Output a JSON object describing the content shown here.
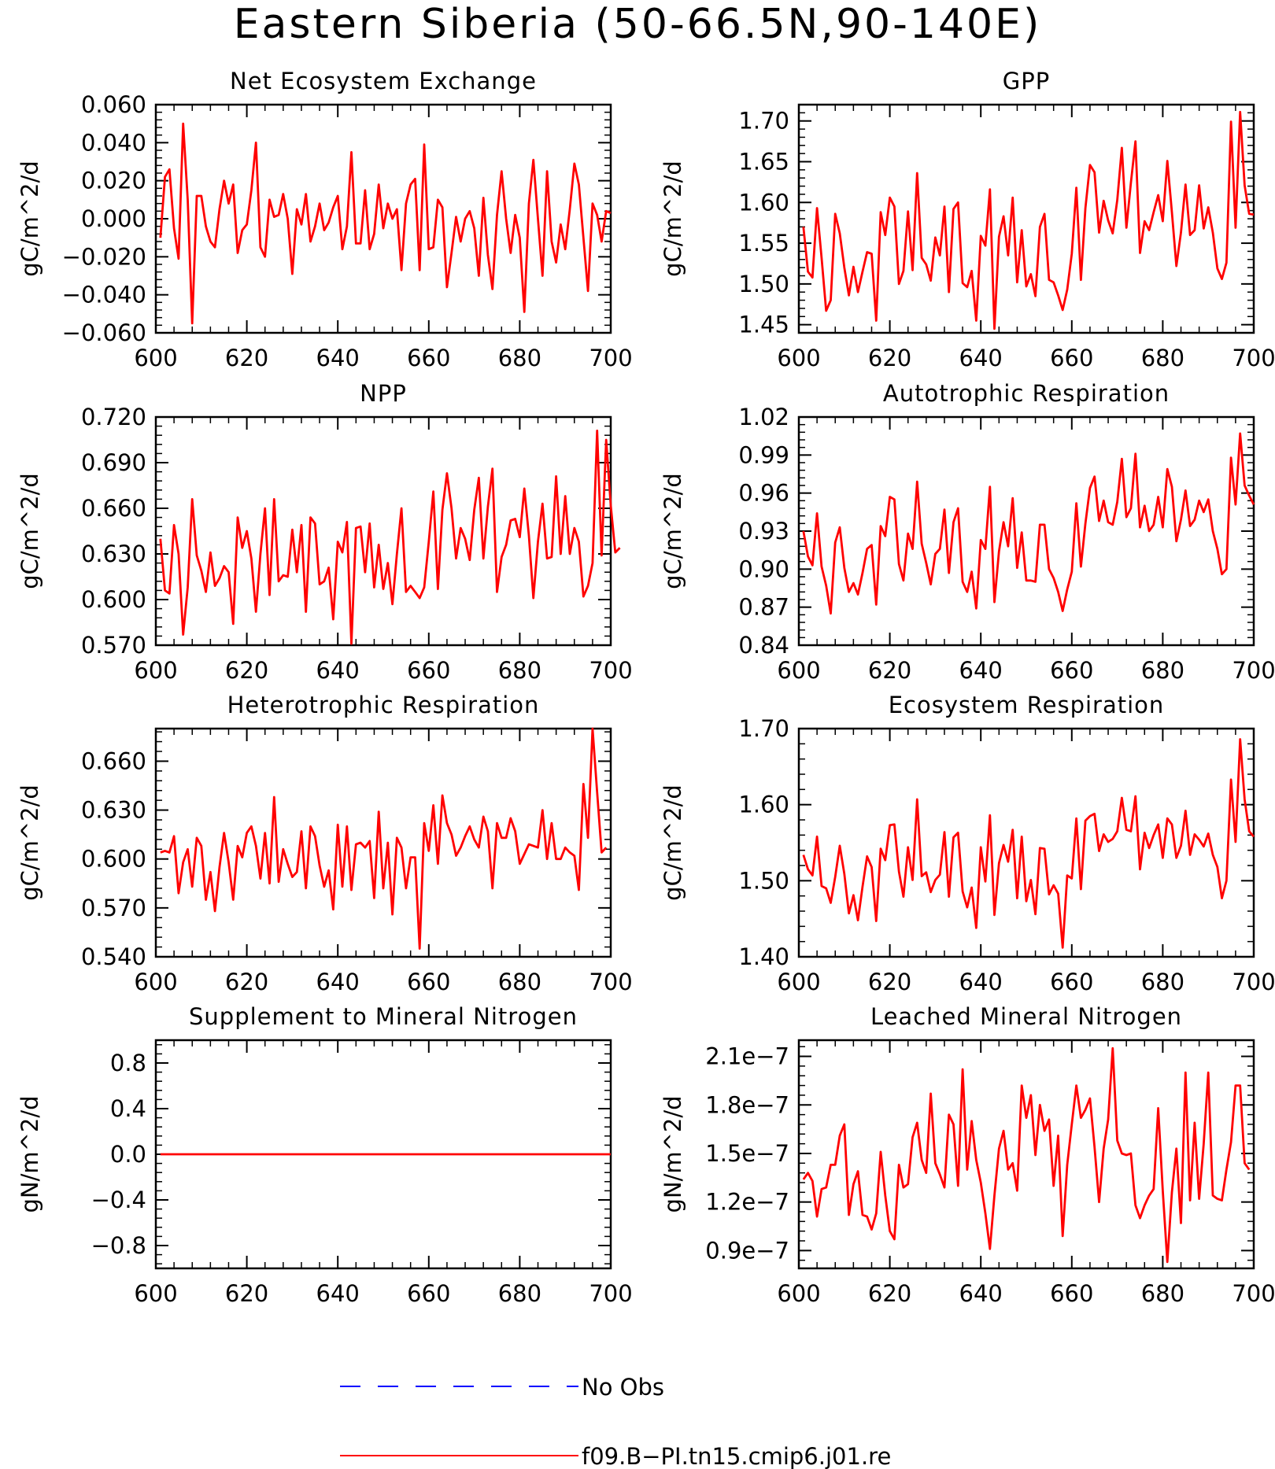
{
  "page_title": "Eastern Siberia (50-66.5N,90-140E)",
  "legend": {
    "entries": [
      {
        "label": "No Obs",
        "color": "#0000ff",
        "style": "dashed"
      },
      {
        "label": "f09.B-PI.tn15.cmip6.j01.re",
        "color": "#ff0000",
        "style": "solid"
      }
    ]
  },
  "chart_data": [
    {
      "type": "line",
      "title": "Net Ecosystem Exchange",
      "ylabel": "gC/m^2/d",
      "xlim": [
        600,
        700
      ],
      "ylim": [
        -0.06,
        0.06
      ],
      "x_ticks": [
        600,
        620,
        640,
        660,
        680,
        700
      ],
      "y_ticks": [
        -0.06,
        -0.04,
        -0.02,
        0,
        0.02,
        0.04,
        0.06
      ],
      "y_tick_labels": [
        "-0.060",
        "-0.040",
        "-0.020",
        "0.000",
        "0.020",
        "0.040",
        "0.060"
      ],
      "series": [
        {
          "color": "#ff0000",
          "x_start": 601,
          "x_step": 1,
          "values": [
            -0.01,
            0.022,
            0.026,
            -0.005,
            -0.021,
            0.05,
            0.01,
            -0.055,
            0.012,
            0.012,
            -0.004,
            -0.012,
            -0.015,
            0.005,
            0.02,
            0.008,
            0.018,
            -0.018,
            -0.006,
            -0.003,
            0.015,
            0.04,
            -0.015,
            -0.02,
            0.01,
            0.001,
            0.002,
            0.013,
            0.0,
            -0.029,
            0.005,
            -0.003,
            0.013,
            -0.012,
            -0.004,
            0.008,
            -0.006,
            -0.002,
            0.006,
            0.012,
            -0.016,
            -0.004,
            0.035,
            -0.013,
            -0.013,
            0.015,
            -0.016,
            -0.008,
            0.018,
            -0.005,
            0.008,
            0.0,
            0.005,
            -0.027,
            0.008,
            0.018,
            0.021,
            -0.027,
            0.039,
            -0.016,
            -0.015,
            0.01,
            0.006,
            -0.036,
            -0.018,
            0.001,
            -0.012,
            0.0,
            0.004,
            -0.005,
            -0.03,
            0.011,
            -0.019,
            -0.037,
            0.002,
            0.025,
            0.0,
            -0.018,
            0.002,
            -0.01,
            -0.049,
            0.008,
            0.031,
            0.0,
            -0.03,
            0.025,
            -0.012,
            -0.023,
            -0.003,
            -0.016,
            0.005,
            0.029,
            0.018,
            -0.01,
            -0.038,
            0.008,
            0.002,
            -0.012,
            0.004,
            0.003
          ]
        }
      ]
    },
    {
      "type": "line",
      "title": "GPP",
      "ylabel": "gC/m^2/d",
      "xlim": [
        600,
        700
      ],
      "ylim": [
        1.44,
        1.72
      ],
      "x_ticks": [
        600,
        620,
        640,
        660,
        680,
        700
      ],
      "y_ticks": [
        1.45,
        1.5,
        1.55,
        1.6,
        1.65,
        1.7
      ],
      "y_tick_labels": [
        "1.45",
        "1.50",
        "1.55",
        "1.60",
        "1.65",
        "1.70"
      ],
      "series": [
        {
          "color": "#ff0000",
          "x_start": 601,
          "x_step": 1,
          "values": [
            1.57,
            1.515,
            1.508,
            1.593,
            1.532,
            1.467,
            1.48,
            1.586,
            1.562,
            1.52,
            1.486,
            1.521,
            1.49,
            1.515,
            1.539,
            1.537,
            1.455,
            1.588,
            1.56,
            1.606,
            1.595,
            1.5,
            1.516,
            1.589,
            1.517,
            1.636,
            1.532,
            1.524,
            1.504,
            1.557,
            1.535,
            1.595,
            1.49,
            1.592,
            1.6,
            1.501,
            1.496,
            1.516,
            1.455,
            1.559,
            1.547,
            1.616,
            1.445,
            1.558,
            1.583,
            1.535,
            1.606,
            1.502,
            1.566,
            1.497,
            1.512,
            1.485,
            1.57,
            1.586,
            1.505,
            1.502,
            1.486,
            1.468,
            1.493,
            1.537,
            1.618,
            1.505,
            1.593,
            1.646,
            1.637,
            1.563,
            1.602,
            1.578,
            1.562,
            1.603,
            1.667,
            1.569,
            1.624,
            1.675,
            1.538,
            1.577,
            1.566,
            1.588,
            1.609,
            1.577,
            1.651,
            1.588,
            1.522,
            1.563,
            1.622,
            1.56,
            1.566,
            1.621,
            1.568,
            1.594,
            1.563,
            1.519,
            1.506,
            1.526,
            1.699,
            1.569,
            1.711,
            1.621,
            1.586,
            1.585
          ]
        }
      ]
    },
    {
      "type": "line",
      "title": "NPP",
      "ylabel": "gC/m^2/d",
      "xlim": [
        600,
        700
      ],
      "ylim": [
        0.57,
        0.72
      ],
      "x_ticks": [
        600,
        620,
        640,
        660,
        680,
        700
      ],
      "y_ticks": [
        0.57,
        0.6,
        0.63,
        0.66,
        0.69,
        0.72
      ],
      "y_tick_labels": [
        "0.570",
        "0.600",
        "0.630",
        "0.660",
        "0.690",
        "0.720"
      ],
      "series": [
        {
          "color": "#ff0000",
          "x_start": 601,
          "x_step": 1,
          "values": [
            0.64,
            0.606,
            0.604,
            0.649,
            0.63,
            0.577,
            0.608,
            0.666,
            0.629,
            0.619,
            0.605,
            0.631,
            0.609,
            0.614,
            0.622,
            0.618,
            0.584,
            0.654,
            0.634,
            0.645,
            0.627,
            0.592,
            0.63,
            0.66,
            0.603,
            0.666,
            0.612,
            0.616,
            0.615,
            0.646,
            0.618,
            0.649,
            0.592,
            0.654,
            0.65,
            0.61,
            0.612,
            0.621,
            0.587,
            0.638,
            0.631,
            0.651,
            0.571,
            0.647,
            0.648,
            0.618,
            0.65,
            0.608,
            0.636,
            0.607,
            0.624,
            0.597,
            0.63,
            0.66,
            0.605,
            0.609,
            0.605,
            0.601,
            0.608,
            0.638,
            0.671,
            0.607,
            0.659,
            0.683,
            0.66,
            0.627,
            0.647,
            0.64,
            0.626,
            0.659,
            0.68,
            0.627,
            0.661,
            0.686,
            0.605,
            0.628,
            0.636,
            0.652,
            0.653,
            0.641,
            0.673,
            0.642,
            0.601,
            0.638,
            0.663,
            0.627,
            0.628,
            0.681,
            0.63,
            0.668,
            0.63,
            0.647,
            0.638,
            0.602,
            0.609,
            0.624,
            0.711,
            0.629,
            0.705,
            0.662,
            0.631,
            0.634
          ]
        }
      ]
    },
    {
      "type": "line",
      "title": "Autotrophic Respiration",
      "ylabel": "gC/m^2/d",
      "xlim": [
        600,
        700
      ],
      "ylim": [
        0.84,
        1.02
      ],
      "x_ticks": [
        600,
        620,
        640,
        660,
        680,
        700
      ],
      "y_ticks": [
        0.84,
        0.87,
        0.9,
        0.93,
        0.96,
        0.99,
        1.02
      ],
      "y_tick_labels": [
        "0.84",
        "0.87",
        "0.90",
        "0.93",
        "0.96",
        "0.99",
        "1.02"
      ],
      "series": [
        {
          "color": "#ff0000",
          "x_start": 601,
          "x_step": 1,
          "values": [
            0.93,
            0.91,
            0.903,
            0.944,
            0.902,
            0.887,
            0.865,
            0.921,
            0.933,
            0.901,
            0.882,
            0.889,
            0.88,
            0.897,
            0.916,
            0.919,
            0.872,
            0.934,
            0.926,
            0.957,
            0.955,
            0.904,
            0.891,
            0.928,
            0.916,
            0.969,
            0.92,
            0.905,
            0.888,
            0.912,
            0.916,
            0.947,
            0.897,
            0.937,
            0.948,
            0.89,
            0.882,
            0.898,
            0.869,
            0.923,
            0.916,
            0.965,
            0.874,
            0.914,
            0.937,
            0.918,
            0.956,
            0.901,
            0.929,
            0.891,
            0.891,
            0.89,
            0.935,
            0.935,
            0.9,
            0.893,
            0.882,
            0.867,
            0.884,
            0.898,
            0.952,
            0.902,
            0.936,
            0.964,
            0.973,
            0.938,
            0.954,
            0.937,
            0.935,
            0.953,
            0.987,
            0.941,
            0.948,
            0.991,
            0.933,
            0.95,
            0.93,
            0.935,
            0.957,
            0.933,
            0.979,
            0.965,
            0.922,
            0.939,
            0.962,
            0.934,
            0.939,
            0.954,
            0.945,
            0.955,
            0.93,
            0.916,
            0.896,
            0.9,
            0.988,
            0.951,
            1.007,
            0.966,
            0.958,
            0.951
          ]
        }
      ]
    },
    {
      "type": "line",
      "title": "Heterotrophic Respiration",
      "ylabel": "gC/m^2/d",
      "xlim": [
        600,
        700
      ],
      "ylim": [
        0.54,
        0.68
      ],
      "x_ticks": [
        600,
        620,
        640,
        660,
        680,
        700
      ],
      "y_ticks": [
        0.54,
        0.57,
        0.6,
        0.63,
        0.66
      ],
      "y_tick_labels": [
        "0.540",
        "0.570",
        "0.600",
        "0.630",
        "0.660"
      ],
      "series": [
        {
          "color": "#ff0000",
          "x_start": 601,
          "x_step": 1,
          "values": [
            0.604,
            0.605,
            0.604,
            0.614,
            0.579,
            0.598,
            0.606,
            0.583,
            0.613,
            0.608,
            0.575,
            0.592,
            0.568,
            0.595,
            0.616,
            0.598,
            0.575,
            0.608,
            0.601,
            0.616,
            0.62,
            0.608,
            0.588,
            0.616,
            0.585,
            0.638,
            0.586,
            0.606,
            0.597,
            0.589,
            0.592,
            0.617,
            0.582,
            0.62,
            0.614,
            0.596,
            0.583,
            0.593,
            0.569,
            0.621,
            0.583,
            0.62,
            0.581,
            0.609,
            0.61,
            0.607,
            0.611,
            0.576,
            0.629,
            0.582,
            0.61,
            0.566,
            0.613,
            0.607,
            0.582,
            0.601,
            0.601,
            0.545,
            0.622,
            0.605,
            0.633,
            0.597,
            0.639,
            0.622,
            0.615,
            0.602,
            0.607,
            0.614,
            0.62,
            0.612,
            0.607,
            0.626,
            0.617,
            0.582,
            0.622,
            0.613,
            0.613,
            0.625,
            0.617,
            0.597,
            0.603,
            0.609,
            0.608,
            0.607,
            0.63,
            0.6,
            0.622,
            0.6,
            0.6,
            0.607,
            0.604,
            0.602,
            0.581,
            0.646,
            0.613,
            0.68,
            0.641,
            0.604,
            0.607
          ]
        }
      ]
    },
    {
      "type": "line",
      "title": "Ecosystem Respiration",
      "ylabel": "gC/m^2/d",
      "xlim": [
        600,
        700
      ],
      "ylim": [
        1.4,
        1.7
      ],
      "x_ticks": [
        600,
        620,
        640,
        660,
        680,
        700
      ],
      "y_ticks": [
        1.4,
        1.5,
        1.6,
        1.7
      ],
      "y_tick_labels": [
        "1.40",
        "1.50",
        "1.60",
        "1.70"
      ],
      "series": [
        {
          "color": "#ff0000",
          "x_start": 601,
          "x_step": 1,
          "values": [
            1.534,
            1.515,
            1.507,
            1.558,
            1.493,
            1.49,
            1.471,
            1.505,
            1.546,
            1.509,
            1.457,
            1.481,
            1.448,
            1.492,
            1.532,
            1.518,
            1.447,
            1.542,
            1.527,
            1.573,
            1.574,
            1.512,
            1.479,
            1.544,
            1.501,
            1.607,
            1.506,
            1.511,
            1.485,
            1.501,
            1.508,
            1.564,
            1.479,
            1.557,
            1.563,
            1.486,
            1.465,
            1.491,
            1.438,
            1.544,
            1.499,
            1.586,
            1.455,
            1.523,
            1.547,
            1.525,
            1.567,
            1.477,
            1.558,
            1.473,
            1.501,
            1.456,
            1.543,
            1.542,
            1.482,
            1.494,
            1.483,
            1.412,
            1.507,
            1.503,
            1.582,
            1.489,
            1.579,
            1.585,
            1.588,
            1.539,
            1.561,
            1.551,
            1.555,
            1.565,
            1.609,
            1.567,
            1.565,
            1.611,
            1.515,
            1.563,
            1.543,
            1.56,
            1.574,
            1.53,
            1.582,
            1.574,
            1.53,
            1.546,
            1.592,
            1.534,
            1.561,
            1.554,
            1.545,
            1.562,
            1.534,
            1.518,
            1.477,
            1.5,
            1.633,
            1.551,
            1.686,
            1.607,
            1.565,
            1.558
          ]
        }
      ]
    },
    {
      "type": "line",
      "title": "Supplement to Mineral Nitrogen",
      "ylabel": "gN/m^2/d",
      "xlim": [
        600,
        700
      ],
      "ylim": [
        -1.0,
        1.0
      ],
      "x_ticks": [
        600,
        620,
        640,
        660,
        680,
        700
      ],
      "y_ticks": [
        -0.8,
        -0.4,
        0,
        0.4,
        0.8
      ],
      "y_tick_labels": [
        "-0.8",
        "-0.4",
        "0.0",
        "0.4",
        "0.8"
      ],
      "series": [
        {
          "color": "#ff0000",
          "x_start": 601,
          "x_step": 99,
          "values": [
            0,
            0
          ]
        }
      ]
    },
    {
      "type": "line",
      "title": "Leached Mineral Nitrogen",
      "ylabel": "gN/m^2/d",
      "xlim": [
        600,
        700
      ],
      "ylim": [
        7.9e-08,
        2.2e-07
      ],
      "x_ticks": [
        600,
        620,
        640,
        660,
        680,
        700
      ],
      "y_ticks": [
        9e-08,
        1.2e-07,
        1.5e-07,
        1.8e-07,
        2.1e-07
      ],
      "y_tick_labels": [
        "0.9e-7",
        "1.2e-7",
        "1.5e-7",
        "1.8e-7",
        "2.1e-7"
      ],
      "series": [
        {
          "color": "#ff0000",
          "x_start": 601,
          "x_step": 1,
          "values": [
            1.34e-07,
            1.38e-07,
            1.33e-07,
            1.11e-07,
            1.28e-07,
            1.29e-07,
            1.43e-07,
            1.43e-07,
            1.61e-07,
            1.68e-07,
            1.12e-07,
            1.31e-07,
            1.39e-07,
            1.12e-07,
            1.11e-07,
            1.03e-07,
            1.13e-07,
            1.51e-07,
            1.24e-07,
            1.02e-07,
            9.7e-08,
            1.43e-07,
            1.29e-07,
            1.31e-07,
            1.6e-07,
            1.69e-07,
            1.46e-07,
            1.38e-07,
            1.87e-07,
            1.44e-07,
            1.37e-07,
            1.29e-07,
            1.74e-07,
            1.68e-07,
            1.3e-07,
            2.02e-07,
            1.4e-07,
            1.7e-07,
            1.46e-07,
            1.32e-07,
            1.13e-07,
            9.1e-08,
            1.24e-07,
            1.53e-07,
            1.64e-07,
            1.4e-07,
            1.44e-07,
            1.27e-07,
            1.92e-07,
            1.72e-07,
            1.86e-07,
            1.49e-07,
            1.8e-07,
            1.64e-07,
            1.71e-07,
            1.3e-07,
            1.61e-07,
            9.9e-08,
            1.43e-07,
            1.68e-07,
            1.92e-07,
            1.72e-07,
            1.77e-07,
            1.84e-07,
            1.54e-07,
            1.2e-07,
            1.53e-07,
            1.71e-07,
            2.15e-07,
            1.58e-07,
            1.5e-07,
            1.49e-07,
            1.5e-07,
            1.18e-07,
            1.1e-07,
            1.18e-07,
            1.24e-07,
            1.28e-07,
            1.78e-07,
            1.27e-07,
            8.3e-08,
            1.26e-07,
            1.53e-07,
            1.07e-07,
            2e-07,
            1.21e-07,
            1.69e-07,
            1.22e-07,
            1.56e-07,
            2e-07,
            1.24e-07,
            1.22e-07,
            1.21e-07,
            1.4e-07,
            1.57e-07,
            1.92e-07,
            1.92e-07,
            1.44e-07,
            1.4e-07
          ]
        }
      ]
    }
  ]
}
